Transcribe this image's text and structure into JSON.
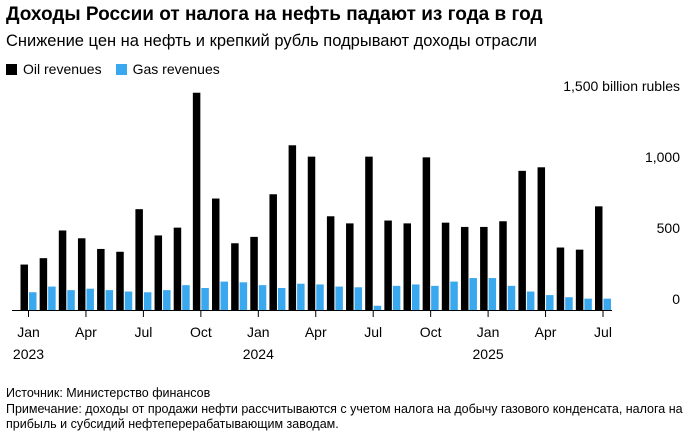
{
  "title": "Доходы России от налога на нефть падают из года в год",
  "subtitle": "Снижение цен на нефть и крепкий рубль подрывают доходы отрасли",
  "legend": [
    {
      "label": "Oil revenues",
      "color": "#000000"
    },
    {
      "label": "Gas revenues",
      "color": "#3aa8ef"
    }
  ],
  "footer": {
    "source": "Источник: Министерство финансов",
    "note": "Примечание: доходы от продажи нефти рассчитываются с учетом налога на добычу газового конденсата, налога на прибыль и субсидий нефтеперерабатывающим заводам."
  },
  "chart_data": {
    "type": "bar",
    "categories": [
      "2023-01",
      "2023-02",
      "2023-03",
      "2023-04",
      "2023-05",
      "2023-06",
      "2023-07",
      "2023-08",
      "2023-09",
      "2023-10",
      "2023-11",
      "2023-12",
      "2024-01",
      "2024-02",
      "2024-03",
      "2024-04",
      "2024-05",
      "2024-06",
      "2024-07",
      "2024-08",
      "2024-09",
      "2024-10",
      "2024-11",
      "2024-12",
      "2025-01",
      "2025-02",
      "2025-03",
      "2025-04",
      "2025-05",
      "2025-06",
      "2025-07"
    ],
    "series": [
      {
        "name": "Oil revenues",
        "color": "#000000",
        "values": [
          320,
          365,
          560,
          505,
          430,
          410,
          710,
          525,
          580,
          1530,
          785,
          470,
          515,
          815,
          1160,
          1080,
          660,
          610,
          1080,
          630,
          610,
          1075,
          615,
          585,
          585,
          625,
          980,
          1005,
          440,
          425,
          730
        ]
      },
      {
        "name": "Gas revenues",
        "color": "#3aa8ef",
        "values": [
          125,
          165,
          140,
          150,
          140,
          130,
          125,
          140,
          175,
          155,
          200,
          195,
          175,
          155,
          185,
          180,
          165,
          160,
          30,
          170,
          180,
          170,
          200,
          225,
          225,
          170,
          130,
          105,
          90,
          80,
          80
        ]
      }
    ],
    "y_ticks": [
      {
        "value": 0,
        "label": "0"
      },
      {
        "value": 500,
        "label": "500"
      },
      {
        "value": 1000,
        "label": "1,000"
      },
      {
        "value": 1500,
        "label": "1,500 billion rubles"
      }
    ],
    "x_ticks": [
      {
        "index": 0,
        "label": "Jan",
        "year": "2023"
      },
      {
        "index": 3,
        "label": "Apr"
      },
      {
        "index": 6,
        "label": "Jul"
      },
      {
        "index": 9,
        "label": "Oct"
      },
      {
        "index": 12,
        "label": "Jan",
        "year": "2024"
      },
      {
        "index": 15,
        "label": "Apr"
      },
      {
        "index": 18,
        "label": "Jul"
      },
      {
        "index": 21,
        "label": "Oct"
      },
      {
        "index": 24,
        "label": "Jan",
        "year": "2025"
      },
      {
        "index": 27,
        "label": "Apr"
      },
      {
        "index": 30,
        "label": "Jul"
      }
    ],
    "ylim": [
      0,
      1500
    ],
    "grid": false
  }
}
